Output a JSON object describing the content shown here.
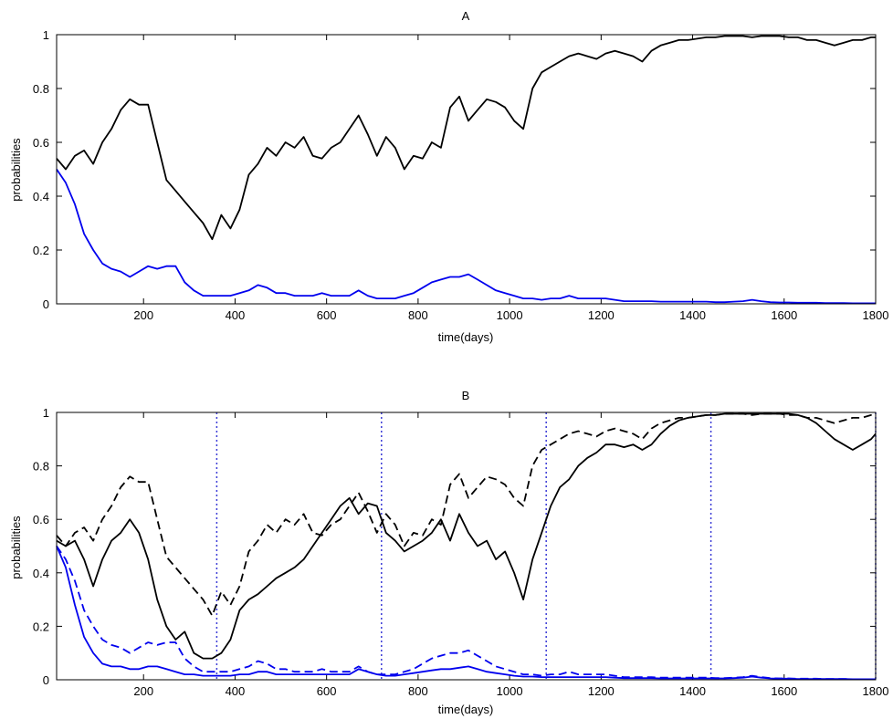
{
  "colors": {
    "black": "#000000",
    "blue": "#0000ee",
    "dotted": "#3b3bd6"
  },
  "chart_data": [
    {
      "type": "line",
      "title": "A",
      "xlabel": "time(days)",
      "ylabel": "probabilities",
      "xlim": [
        10,
        1800
      ],
      "ylim": [
        0,
        1
      ],
      "xticks": [
        200,
        400,
        600,
        800,
        1000,
        1200,
        1400,
        1600,
        1800
      ],
      "yticks": [
        0,
        0.2,
        0.4,
        0.6,
        0.8,
        1
      ],
      "x": [
        10,
        30,
        50,
        70,
        90,
        110,
        130,
        150,
        170,
        190,
        210,
        230,
        250,
        270,
        290,
        310,
        330,
        350,
        370,
        390,
        410,
        430,
        450,
        470,
        490,
        510,
        530,
        550,
        570,
        590,
        610,
        630,
        650,
        670,
        690,
        710,
        730,
        750,
        770,
        790,
        810,
        830,
        850,
        870,
        890,
        910,
        930,
        950,
        970,
        990,
        1010,
        1030,
        1050,
        1070,
        1090,
        1110,
        1130,
        1150,
        1170,
        1190,
        1210,
        1230,
        1250,
        1270,
        1290,
        1310,
        1330,
        1350,
        1370,
        1390,
        1410,
        1430,
        1450,
        1470,
        1490,
        1510,
        1530,
        1550,
        1570,
        1590,
        1610,
        1630,
        1650,
        1670,
        1690,
        1710,
        1730,
        1750,
        1770,
        1790,
        1800
      ],
      "series": [
        {
          "color": "#000000",
          "dash": "solid",
          "values": [
            0.54,
            0.5,
            0.55,
            0.57,
            0.52,
            0.6,
            0.65,
            0.72,
            0.76,
            0.74,
            0.74,
            0.6,
            0.46,
            0.42,
            0.38,
            0.34,
            0.3,
            0.24,
            0.33,
            0.28,
            0.35,
            0.48,
            0.52,
            0.58,
            0.55,
            0.6,
            0.58,
            0.62,
            0.55,
            0.54,
            0.58,
            0.6,
            0.65,
            0.7,
            0.63,
            0.55,
            0.62,
            0.58,
            0.5,
            0.55,
            0.54,
            0.6,
            0.58,
            0.73,
            0.77,
            0.68,
            0.72,
            0.76,
            0.75,
            0.73,
            0.68,
            0.65,
            0.8,
            0.86,
            0.88,
            0.9,
            0.92,
            0.93,
            0.92,
            0.91,
            0.93,
            0.94,
            0.93,
            0.92,
            0.9,
            0.94,
            0.96,
            0.97,
            0.98,
            0.98,
            0.985,
            0.99,
            0.99,
            0.995,
            0.995,
            0.995,
            0.99,
            0.995,
            0.995,
            0.995,
            0.99,
            0.99,
            0.98,
            0.98,
            0.97,
            0.96,
            0.97,
            0.98,
            0.98,
            0.99,
            0.99
          ]
        },
        {
          "color": "#0000ee",
          "dash": "solid",
          "values": [
            0.5,
            0.45,
            0.37,
            0.26,
            0.2,
            0.15,
            0.13,
            0.12,
            0.1,
            0.12,
            0.14,
            0.13,
            0.14,
            0.14,
            0.08,
            0.05,
            0.03,
            0.03,
            0.03,
            0.03,
            0.04,
            0.05,
            0.07,
            0.06,
            0.04,
            0.04,
            0.03,
            0.03,
            0.03,
            0.04,
            0.03,
            0.03,
            0.03,
            0.05,
            0.03,
            0.02,
            0.02,
            0.02,
            0.03,
            0.04,
            0.06,
            0.08,
            0.09,
            0.1,
            0.1,
            0.11,
            0.09,
            0.07,
            0.05,
            0.04,
            0.03,
            0.02,
            0.02,
            0.015,
            0.02,
            0.02,
            0.03,
            0.02,
            0.02,
            0.02,
            0.02,
            0.015,
            0.01,
            0.01,
            0.01,
            0.01,
            0.008,
            0.008,
            0.008,
            0.008,
            0.008,
            0.008,
            0.006,
            0.006,
            0.008,
            0.01,
            0.015,
            0.01,
            0.006,
            0.005,
            0.005,
            0.004,
            0.004,
            0.004,
            0.003,
            0.003,
            0.003,
            0.002,
            0.002,
            0.002,
            0.002
          ]
        }
      ],
      "vlines": []
    },
    {
      "type": "line",
      "title": "B",
      "xlabel": "time(days)",
      "ylabel": "probabilities",
      "xlim": [
        10,
        1800
      ],
      "ylim": [
        0,
        1
      ],
      "xticks": [
        200,
        400,
        600,
        800,
        1000,
        1200,
        1400,
        1600,
        1800
      ],
      "yticks": [
        0,
        0.2,
        0.4,
        0.6,
        0.8,
        1
      ],
      "x": [
        10,
        30,
        50,
        70,
        90,
        110,
        130,
        150,
        170,
        190,
        210,
        230,
        250,
        270,
        290,
        310,
        330,
        350,
        370,
        390,
        410,
        430,
        450,
        470,
        490,
        510,
        530,
        550,
        570,
        590,
        610,
        630,
        650,
        670,
        690,
        710,
        730,
        750,
        770,
        790,
        810,
        830,
        850,
        870,
        890,
        910,
        930,
        950,
        970,
        990,
        1010,
        1030,
        1050,
        1070,
        1090,
        1110,
        1130,
        1150,
        1170,
        1190,
        1210,
        1230,
        1250,
        1270,
        1290,
        1310,
        1330,
        1350,
        1370,
        1390,
        1410,
        1430,
        1450,
        1470,
        1490,
        1510,
        1530,
        1550,
        1570,
        1590,
        1610,
        1630,
        1650,
        1670,
        1690,
        1710,
        1730,
        1750,
        1770,
        1790,
        1800
      ],
      "series": [
        {
          "color": "#000000",
          "dash": "solid",
          "values": [
            0.52,
            0.5,
            0.52,
            0.45,
            0.35,
            0.45,
            0.52,
            0.55,
            0.6,
            0.55,
            0.45,
            0.3,
            0.2,
            0.15,
            0.18,
            0.1,
            0.08,
            0.08,
            0.1,
            0.15,
            0.26,
            0.3,
            0.32,
            0.35,
            0.38,
            0.4,
            0.42,
            0.45,
            0.5,
            0.55,
            0.6,
            0.65,
            0.68,
            0.62,
            0.66,
            0.65,
            0.55,
            0.52,
            0.48,
            0.5,
            0.52,
            0.55,
            0.6,
            0.52,
            0.62,
            0.55,
            0.5,
            0.52,
            0.45,
            0.48,
            0.4,
            0.3,
            0.45,
            0.55,
            0.65,
            0.72,
            0.75,
            0.8,
            0.83,
            0.85,
            0.88,
            0.88,
            0.87,
            0.88,
            0.86,
            0.88,
            0.92,
            0.95,
            0.97,
            0.98,
            0.985,
            0.99,
            0.99,
            0.995,
            0.995,
            0.995,
            0.995,
            0.995,
            0.995,
            0.995,
            0.995,
            0.99,
            0.98,
            0.96,
            0.93,
            0.9,
            0.88,
            0.86,
            0.88,
            0.9,
            0.92
          ]
        },
        {
          "color": "#000000",
          "dash": "dashed",
          "values": [
            0.54,
            0.5,
            0.55,
            0.57,
            0.52,
            0.6,
            0.65,
            0.72,
            0.76,
            0.74,
            0.74,
            0.6,
            0.46,
            0.42,
            0.38,
            0.34,
            0.3,
            0.24,
            0.33,
            0.28,
            0.35,
            0.48,
            0.52,
            0.58,
            0.55,
            0.6,
            0.58,
            0.62,
            0.55,
            0.54,
            0.58,
            0.6,
            0.65,
            0.7,
            0.63,
            0.55,
            0.62,
            0.58,
            0.5,
            0.55,
            0.54,
            0.6,
            0.58,
            0.73,
            0.77,
            0.68,
            0.72,
            0.76,
            0.75,
            0.73,
            0.68,
            0.65,
            0.8,
            0.86,
            0.88,
            0.9,
            0.92,
            0.93,
            0.92,
            0.91,
            0.93,
            0.94,
            0.93,
            0.92,
            0.9,
            0.94,
            0.96,
            0.97,
            0.98,
            0.98,
            0.985,
            0.99,
            0.99,
            0.995,
            0.995,
            0.995,
            0.99,
            0.995,
            0.995,
            0.995,
            0.99,
            0.99,
            0.98,
            0.98,
            0.97,
            0.96,
            0.97,
            0.98,
            0.98,
            0.99,
            0.99
          ]
        },
        {
          "color": "#0000ee",
          "dash": "solid",
          "values": [
            0.5,
            0.42,
            0.28,
            0.16,
            0.1,
            0.06,
            0.05,
            0.05,
            0.04,
            0.04,
            0.05,
            0.05,
            0.04,
            0.03,
            0.02,
            0.02,
            0.015,
            0.015,
            0.015,
            0.015,
            0.02,
            0.02,
            0.03,
            0.03,
            0.02,
            0.02,
            0.02,
            0.02,
            0.02,
            0.02,
            0.02,
            0.02,
            0.02,
            0.04,
            0.03,
            0.02,
            0.015,
            0.015,
            0.02,
            0.025,
            0.03,
            0.035,
            0.04,
            0.04,
            0.045,
            0.05,
            0.04,
            0.03,
            0.025,
            0.02,
            0.015,
            0.012,
            0.012,
            0.01,
            0.01,
            0.01,
            0.01,
            0.01,
            0.01,
            0.01,
            0.01,
            0.008,
            0.006,
            0.006,
            0.006,
            0.006,
            0.005,
            0.005,
            0.005,
            0.005,
            0.005,
            0.005,
            0.005,
            0.005,
            0.006,
            0.008,
            0.012,
            0.008,
            0.005,
            0.004,
            0.004,
            0.003,
            0.003,
            0.003,
            0.003,
            0.003,
            0.003,
            0.002,
            0.002,
            0.002,
            0.002
          ]
        },
        {
          "color": "#0000ee",
          "dash": "dashed",
          "values": [
            0.5,
            0.45,
            0.37,
            0.26,
            0.2,
            0.15,
            0.13,
            0.12,
            0.1,
            0.12,
            0.14,
            0.13,
            0.14,
            0.14,
            0.08,
            0.05,
            0.03,
            0.03,
            0.03,
            0.03,
            0.04,
            0.05,
            0.07,
            0.06,
            0.04,
            0.04,
            0.03,
            0.03,
            0.03,
            0.04,
            0.03,
            0.03,
            0.03,
            0.05,
            0.03,
            0.02,
            0.02,
            0.02,
            0.03,
            0.04,
            0.06,
            0.08,
            0.09,
            0.1,
            0.1,
            0.11,
            0.09,
            0.07,
            0.05,
            0.04,
            0.03,
            0.02,
            0.02,
            0.015,
            0.02,
            0.02,
            0.03,
            0.02,
            0.02,
            0.02,
            0.02,
            0.015,
            0.01,
            0.01,
            0.01,
            0.01,
            0.008,
            0.008,
            0.008,
            0.008,
            0.008,
            0.008,
            0.006,
            0.006,
            0.008,
            0.01,
            0.015,
            0.01,
            0.006,
            0.005,
            0.005,
            0.004,
            0.004,
            0.004,
            0.003,
            0.003,
            0.003,
            0.002,
            0.002,
            0.002,
            0.002
          ]
        }
      ],
      "vlines": [
        360,
        720,
        1080,
        1440,
        1800
      ]
    }
  ]
}
